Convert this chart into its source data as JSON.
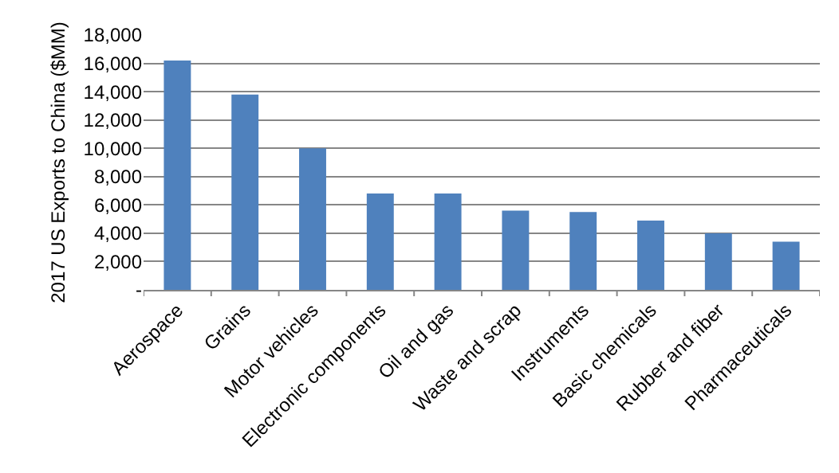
{
  "chart_data": {
    "type": "bar",
    "ylabel": "2017 US Exports to China ($MM)",
    "categories": [
      "Aerospace",
      "Grains",
      "Motor vehicles",
      "Electronic components",
      "Oil and gas",
      "Waste and scrap",
      "Instruments",
      "Basic chemicals",
      "Rubber and fiber",
      "Pharmaceuticals"
    ],
    "values": [
      16200,
      13800,
      10000,
      6800,
      6800,
      5600,
      5500,
      4900,
      4000,
      3400
    ],
    "color": "#4f81bd",
    "ylim": [
      0,
      18000
    ],
    "yticks": [
      {
        "value": 0,
        "label": "-"
      },
      {
        "value": 2000,
        "label": "2,000"
      },
      {
        "value": 4000,
        "label": "4,000"
      },
      {
        "value": 6000,
        "label": "6,000"
      },
      {
        "value": 8000,
        "label": "8,000"
      },
      {
        "value": 10000,
        "label": "10,000"
      },
      {
        "value": 12000,
        "label": "12,000"
      },
      {
        "value": 14000,
        "label": "14,000"
      },
      {
        "value": 16000,
        "label": "16,000"
      },
      {
        "value": 18000,
        "label": "18,000"
      }
    ],
    "grid": "y",
    "legend": false
  }
}
